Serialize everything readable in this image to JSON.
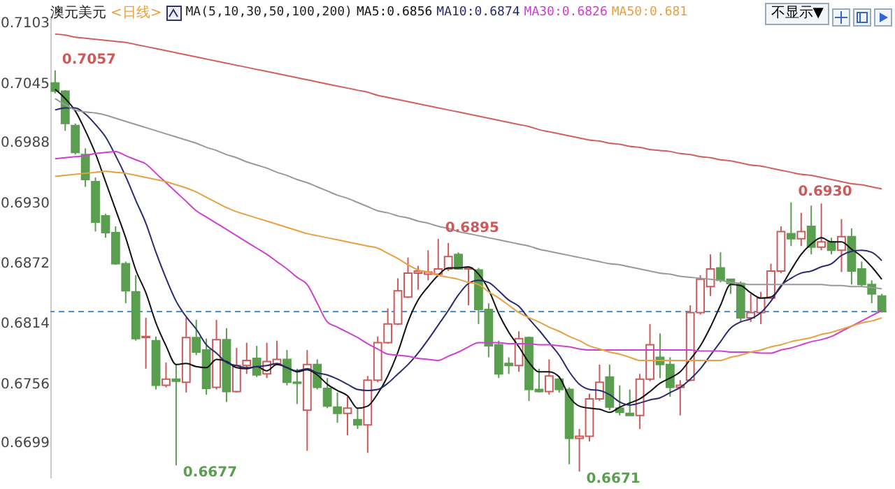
{
  "chart_data": {
    "type": "candlestick",
    "title": "澳元美元",
    "subtitle": "<日线>",
    "categories": [
      null,
      null,
      null,
      null,
      null,
      null,
      null,
      null,
      null,
      null,
      null,
      null,
      null,
      null,
      null,
      null,
      null,
      null,
      null,
      null,
      null,
      null,
      null,
      null,
      null,
      null,
      null,
      null,
      null,
      null,
      null,
      null,
      null,
      null,
      null,
      null,
      null,
      null,
      null,
      null,
      null,
      null,
      null,
      null,
      null,
      null,
      null,
      null,
      null,
      null,
      null,
      null,
      null,
      null,
      null,
      null,
      null,
      null,
      null,
      null,
      null,
      null,
      null,
      null,
      null,
      null,
      null,
      null,
      null,
      null,
      null,
      null,
      null,
      null,
      null,
      null,
      null,
      null,
      null,
      null,
      null,
      null,
      null
    ],
    "ohlc": [
      [
        0.7045,
        0.7057,
        0.7035,
        0.7037
      ],
      [
        0.7037,
        0.7038,
        0.6999,
        0.7006
      ],
      [
        0.7004,
        0.7006,
        0.6976,
        0.6978
      ],
      [
        0.6976,
        0.6982,
        0.6945,
        0.6952
      ],
      [
        0.695,
        0.6954,
        0.6902,
        0.6911
      ],
      [
        0.6917,
        0.6919,
        0.6896,
        0.6901
      ],
      [
        0.6901,
        0.6907,
        0.687,
        0.6871
      ],
      [
        0.6871,
        0.6873,
        0.6833,
        0.6845
      ],
      [
        0.6844,
        0.686,
        0.6797,
        0.6799
      ],
      [
        0.68,
        0.6819,
        0.677,
        0.6801
      ],
      [
        0.6797,
        0.6801,
        0.675,
        0.6754
      ],
      [
        0.6754,
        0.6776,
        0.6752,
        0.676
      ],
      [
        0.676,
        0.6774,
        0.6677,
        0.6758
      ],
      [
        0.6757,
        0.6819,
        0.6747,
        0.68
      ],
      [
        0.68,
        0.6817,
        0.6783,
        0.6786
      ],
      [
        0.6788,
        0.6799,
        0.6745,
        0.6751
      ],
      [
        0.6752,
        0.6817,
        0.675,
        0.6798
      ],
      [
        0.6798,
        0.6809,
        0.6738,
        0.6748
      ],
      [
        0.6748,
        0.679,
        0.6747,
        0.6773
      ],
      [
        0.6773,
        0.6795,
        0.6765,
        0.6778
      ],
      [
        0.678,
        0.6792,
        0.6762,
        0.6764
      ],
      [
        0.6765,
        0.6795,
        0.6761,
        0.6777
      ],
      [
        0.6774,
        0.6797,
        0.6774,
        0.6779
      ],
      [
        0.6779,
        0.6788,
        0.6754,
        0.6757
      ],
      [
        0.6757,
        0.677,
        0.6736,
        0.6756
      ],
      [
        0.673,
        0.6788,
        0.6691,
        0.6774
      ],
      [
        0.6774,
        0.6779,
        0.675,
        0.6752
      ],
      [
        0.6751,
        0.6761,
        0.6732,
        0.6734
      ],
      [
        0.6733,
        0.6747,
        0.6718,
        0.6727
      ],
      [
        0.6727,
        0.6743,
        0.6706,
        0.6732
      ],
      [
        0.6721,
        0.6732,
        0.6712,
        0.6716
      ],
      [
        0.6716,
        0.6763,
        0.6689,
        0.6759
      ],
      [
        0.6759,
        0.6801,
        0.6757,
        0.6795
      ],
      [
        0.6795,
        0.6828,
        0.6794,
        0.6813
      ],
      [
        0.6813,
        0.6857,
        0.6812,
        0.6845
      ],
      [
        0.6839,
        0.6877,
        0.6838,
        0.6862
      ],
      [
        0.6862,
        0.6869,
        0.6846,
        0.6864
      ],
      [
        0.6861,
        0.6884,
        0.6855,
        0.6863
      ],
      [
        0.6861,
        0.6895,
        0.686,
        0.6866
      ],
      [
        0.6866,
        0.6891,
        0.6864,
        0.6878
      ],
      [
        0.688,
        0.6882,
        0.6866,
        0.6866
      ],
      [
        0.6866,
        0.6867,
        0.6831,
        0.6867
      ],
      [
        0.6865,
        0.6867,
        0.6813,
        0.6827
      ],
      [
        0.6827,
        0.6833,
        0.6781,
        0.6792
      ],
      [
        0.6793,
        0.6797,
        0.6761,
        0.6765
      ],
      [
        0.6775,
        0.6781,
        0.6765,
        0.6773
      ],
      [
        0.6773,
        0.6806,
        0.6767,
        0.6799
      ],
      [
        0.68,
        0.6801,
        0.6739,
        0.675
      ],
      [
        0.675,
        0.677,
        0.6747,
        0.6748
      ],
      [
        0.6748,
        0.6779,
        0.6745,
        0.6763
      ],
      [
        0.676,
        0.6763,
        0.6747,
        0.675
      ],
      [
        0.675,
        0.6752,
        0.6678,
        0.6703
      ],
      [
        0.6703,
        0.6712,
        0.6671,
        0.6705
      ],
      [
        0.6705,
        0.6746,
        0.67,
        0.6741
      ],
      [
        0.6741,
        0.6774,
        0.6739,
        0.6757
      ],
      [
        0.6762,
        0.6774,
        0.673,
        0.6733
      ],
      [
        0.6732,
        0.6754,
        0.6725,
        0.6728
      ],
      [
        0.6727,
        0.675,
        0.6725,
        0.6725
      ],
      [
        0.6725,
        0.6765,
        0.6712,
        0.676
      ],
      [
        0.676,
        0.6813,
        0.6758,
        0.6793
      ],
      [
        0.6781,
        0.6804,
        0.6761,
        0.6774
      ],
      [
        0.6774,
        0.6781,
        0.6743,
        0.6752
      ],
      [
        0.6752,
        0.6759,
        0.6725,
        0.6754
      ],
      [
        0.6759,
        0.6831,
        0.6758,
        0.6824
      ],
      [
        0.6824,
        0.686,
        0.6822,
        0.6856
      ],
      [
        0.6849,
        0.688,
        0.684,
        0.6866
      ],
      [
        0.6867,
        0.6882,
        0.6853,
        0.6855
      ],
      [
        0.6856,
        0.6856,
        0.6842,
        0.6852
      ],
      [
        0.6852,
        0.6854,
        0.6815,
        0.6819
      ],
      [
        0.6819,
        0.6842,
        0.6815,
        0.6824
      ],
      [
        0.6824,
        0.6844,
        0.6813,
        0.6838
      ],
      [
        0.6838,
        0.6871,
        0.6837,
        0.6864
      ],
      [
        0.6864,
        0.6907,
        0.6862,
        0.6902
      ],
      [
        0.69,
        0.693,
        0.6888,
        0.6895
      ],
      [
        0.6895,
        0.692,
        0.6888,
        0.6902
      ],
      [
        0.6907,
        0.6927,
        0.688,
        0.6887
      ],
      [
        0.6887,
        0.6929,
        0.6884,
        0.6892
      ],
      [
        0.6892,
        0.6896,
        0.688,
        0.6884
      ],
      [
        0.6884,
        0.6914,
        0.6863,
        0.6897
      ],
      [
        0.6897,
        0.6905,
        0.6851,
        0.6864
      ],
      [
        0.6866,
        0.6873,
        0.6849,
        0.6851
      ],
      [
        0.6851,
        0.6855,
        0.6833,
        0.6842
      ],
      [
        0.684,
        0.6842,
        0.6824,
        0.6825
      ]
    ],
    "colors": [
      "#5a9e4f",
      "#5a9e4f",
      "#5a9e4f",
      "#5a9e4f",
      "#5a9e4f",
      "#5a9e4f",
      "#5a9e4f",
      "#5a9e4f",
      "#5a9e4f",
      "#cc5a5a",
      "#5a9e4f",
      "#cc5a5a",
      "#5a9e4f",
      "#cc5a5a",
      "#5a9e4f",
      "#5a9e4f",
      "#cc5a5a",
      "#5a9e4f",
      "#cc5a5a",
      "#cc5a5a",
      "#5a9e4f",
      "#cc5a5a",
      "#cc5a5a",
      "#5a9e4f",
      "#5a9e4f",
      "#cc5a5a",
      "#5a9e4f",
      "#5a9e4f",
      "#5a9e4f",
      "#cc5a5a",
      "#5a9e4f",
      "#cc5a5a",
      "#cc5a5a",
      "#cc5a5a",
      "#cc5a5a",
      "#cc5a5a",
      "#cc5a5a",
      "#cc5a5a",
      "#cc5a5a",
      "#cc5a5a",
      "#5a9e4f",
      "#cc5a5a",
      "#5a9e4f",
      "#5a9e4f",
      "#5a9e4f",
      "#5a9e4f",
      "#cc5a5a",
      "#5a9e4f",
      "#5a9e4f",
      "#cc5a5a",
      "#5a9e4f",
      "#5a9e4f",
      "#cc5a5a",
      "#cc5a5a",
      "#cc5a5a",
      "#5a9e4f",
      "#5a9e4f",
      "#5a9e4f",
      "#cc5a5a",
      "#cc5a5a",
      "#5a9e4f",
      "#5a9e4f",
      "#cc5a5a",
      "#cc5a5a",
      "#cc5a5a",
      "#cc5a5a",
      "#5a9e4f",
      "#5a9e4f",
      "#5a9e4f",
      "#cc5a5a",
      "#cc5a5a",
      "#cc5a5a",
      "#cc5a5a",
      "#5a9e4f",
      "#cc5a5a",
      "#5a9e4f",
      "#cc5a5a",
      "#5a9e4f",
      "#cc5a5a",
      "#5a9e4f",
      "#5a9e4f",
      "#5a9e4f",
      "#5a9e4f"
    ],
    "series": [
      {
        "type": "line",
        "name": "MA5:0.6856",
        "color": "#111111",
        "values": [
          0.7039,
          0.703,
          0.7018,
          0.6999,
          0.6977,
          0.695,
          0.6923,
          0.6896,
          0.6865,
          0.6843,
          0.6814,
          0.6792,
          0.6774,
          0.6775,
          0.6772,
          0.6771,
          0.6779,
          0.6777,
          0.6771,
          0.677,
          0.6772,
          0.6768,
          0.6774,
          0.6771,
          0.6767,
          0.6769,
          0.6764,
          0.6755,
          0.6749,
          0.6744,
          0.6732,
          0.6734,
          0.6746,
          0.6763,
          0.6786,
          0.6815,
          0.6836,
          0.6849,
          0.686,
          0.6867,
          0.6867,
          0.6868,
          0.6861,
          0.6846,
          0.6823,
          0.6805,
          0.6791,
          0.6776,
          0.6767,
          0.6767,
          0.6762,
          0.6743,
          0.6734,
          0.6732,
          0.6731,
          0.6728,
          0.6733,
          0.6737,
          0.6741,
          0.6748,
          0.6756,
          0.6761,
          0.6767,
          0.6779,
          0.6792,
          0.681,
          0.6831,
          0.6851,
          0.685,
          0.6843,
          0.6838,
          0.6839,
          0.6849,
          0.6865,
          0.688,
          0.689,
          0.6896,
          0.6892,
          0.6892,
          0.6885,
          0.6878,
          0.6868,
          0.6856
        ]
      },
      {
        "type": "line",
        "name": "MA10:0.6874",
        "color": "#2a2a70",
        "values": [
          0.7019,
          0.7021,
          0.7021,
          0.7015,
          0.7005,
          0.6993,
          0.6975,
          0.6955,
          0.6932,
          0.691,
          0.6882,
          0.6857,
          0.6835,
          0.682,
          0.6808,
          0.6793,
          0.6785,
          0.6776,
          0.6773,
          0.6771,
          0.6772,
          0.6773,
          0.6775,
          0.6771,
          0.6768,
          0.677,
          0.6766,
          0.6764,
          0.676,
          0.6755,
          0.675,
          0.6749,
          0.675,
          0.6756,
          0.6765,
          0.6774,
          0.6785,
          0.6798,
          0.6812,
          0.6826,
          0.6841,
          0.6852,
          0.6855,
          0.6853,
          0.6845,
          0.6836,
          0.683,
          0.6818,
          0.6807,
          0.6795,
          0.6783,
          0.6767,
          0.6755,
          0.675,
          0.6749,
          0.6745,
          0.6738,
          0.6735,
          0.6737,
          0.674,
          0.6742,
          0.6747,
          0.6752,
          0.676,
          0.677,
          0.6783,
          0.6796,
          0.6809,
          0.6815,
          0.6818,
          0.6824,
          0.6835,
          0.685,
          0.6857,
          0.6862,
          0.6864,
          0.6868,
          0.6871,
          0.6879,
          0.6883,
          0.6884,
          0.6882,
          0.6874
        ]
      },
      {
        "type": "line",
        "name": "MA30:0.6826",
        "color": "#d040d0",
        "values": [
          0.6972,
          0.6973,
          0.6974,
          0.6975,
          0.6977,
          0.6978,
          0.6979,
          0.6975,
          0.6971,
          0.6967,
          0.6958,
          0.6949,
          0.694,
          0.6931,
          0.6922,
          0.6916,
          0.691,
          0.6904,
          0.6898,
          0.6892,
          0.6886,
          0.688,
          0.6873,
          0.6866,
          0.6858,
          0.6851,
          0.6833,
          0.6815,
          0.681,
          0.6805,
          0.68,
          0.6794,
          0.6789,
          0.6784,
          0.6783,
          0.6782,
          0.678,
          0.6779,
          0.6778,
          0.6782,
          0.6786,
          0.6791,
          0.6795,
          0.6795,
          0.6795,
          0.6794,
          0.6794,
          0.6794,
          0.6793,
          0.6793,
          0.6792,
          0.6791,
          0.6789,
          0.6788,
          0.6788,
          0.6788,
          0.6788,
          0.6788,
          0.6788,
          0.6788,
          0.6788,
          0.6788,
          0.6788,
          0.6788,
          0.6787,
          0.6787,
          0.6787,
          0.6786,
          0.6786,
          0.6786,
          0.6785,
          0.6785,
          0.6788,
          0.679,
          0.6793,
          0.6796,
          0.6798,
          0.6801,
          0.6806,
          0.6811,
          0.6816,
          0.6821,
          0.6826
        ]
      },
      {
        "type": "line",
        "name": "MA50:0.681",
        "color": "#e8a040",
        "values": [
          0.6955,
          0.6956,
          0.6957,
          0.6958,
          0.6959,
          0.696,
          0.6959,
          0.6958,
          0.6956,
          0.6954,
          0.6952,
          0.695,
          0.6947,
          0.6944,
          0.694,
          0.6935,
          0.693,
          0.6925,
          0.6921,
          0.6918,
          0.6915,
          0.6912,
          0.6909,
          0.6906,
          0.6903,
          0.69,
          0.6898,
          0.6896,
          0.6894,
          0.6892,
          0.689,
          0.6888,
          0.6886,
          0.6881,
          0.6876,
          0.687,
          0.6865,
          0.6863,
          0.686,
          0.6858,
          0.6856,
          0.6853,
          0.6851,
          0.6844,
          0.6838,
          0.6831,
          0.6824,
          0.6819,
          0.6815,
          0.681,
          0.6806,
          0.6801,
          0.6797,
          0.6792,
          0.6789,
          0.6786,
          0.6784,
          0.6781,
          0.6778,
          0.6778,
          0.6778,
          0.6778,
          0.6778,
          0.6778,
          0.6778,
          0.6778,
          0.6778,
          0.6781,
          0.6783,
          0.6786,
          0.6788,
          0.6791,
          0.6793,
          0.6796,
          0.6798,
          0.68,
          0.6803,
          0.6805,
          0.6808,
          0.6811,
          0.6814,
          0.6816,
          0.6819
        ]
      },
      {
        "type": "line",
        "color": "#999999",
        "values": [
          0.703,
          0.7024,
          0.7019,
          0.7017,
          0.7016,
          0.7014,
          0.7011,
          0.7008,
          0.7005,
          0.7002,
          0.6999,
          0.6996,
          0.6993,
          0.699,
          0.6987,
          0.6983,
          0.698,
          0.6976,
          0.6973,
          0.6969,
          0.6966,
          0.6963,
          0.6959,
          0.6956,
          0.6952,
          0.6949,
          0.6945,
          0.6941,
          0.6937,
          0.6934,
          0.693,
          0.6926,
          0.6922,
          0.692,
          0.6917,
          0.6915,
          0.6912,
          0.691,
          0.6907,
          0.6905,
          0.6902,
          0.69,
          0.6898,
          0.6896,
          0.6894,
          0.6892,
          0.689,
          0.6888,
          0.6885,
          0.6883,
          0.6881,
          0.6879,
          0.6877,
          0.6875,
          0.6873,
          0.6871,
          0.687,
          0.6868,
          0.6866,
          0.6864,
          0.6862,
          0.6861,
          0.6859,
          0.6858,
          0.6857,
          0.6856,
          0.6855,
          0.6853,
          0.6852,
          0.6851,
          0.6851,
          0.6851,
          0.6851,
          0.6851,
          0.6851,
          0.6851,
          0.6851,
          0.685,
          0.685,
          0.6849,
          0.6849,
          0.6848,
          0.6847
        ]
      },
      {
        "type": "line",
        "color": "#d06060",
        "values": [
          0.7092,
          0.7091,
          0.7089,
          0.7088,
          0.7087,
          0.7086,
          0.7085,
          0.7084,
          0.7082,
          0.708,
          0.7078,
          0.7076,
          0.7074,
          0.7072,
          0.707,
          0.7068,
          0.7066,
          0.7064,
          0.7062,
          0.706,
          0.7058,
          0.7056,
          0.7054,
          0.7052,
          0.705,
          0.7048,
          0.7046,
          0.7044,
          0.7042,
          0.704,
          0.7038,
          0.7036,
          0.7033,
          0.7031,
          0.7029,
          0.7027,
          0.7025,
          0.7023,
          0.7021,
          0.7019,
          0.7017,
          0.7015,
          0.7013,
          0.7011,
          0.7009,
          0.7007,
          0.7005,
          0.7003,
          0.7,
          0.6998,
          0.6996,
          0.6994,
          0.6992,
          0.699,
          0.6989,
          0.6987,
          0.6986,
          0.6984,
          0.6983,
          0.6981,
          0.698,
          0.6979,
          0.6977,
          0.6976,
          0.6974,
          0.6973,
          0.6971,
          0.697,
          0.6968,
          0.6966,
          0.6965,
          0.6963,
          0.6961,
          0.6959,
          0.6957,
          0.6956,
          0.6954,
          0.6952,
          0.695,
          0.6948,
          0.6947,
          0.6945,
          0.6943
        ]
      }
    ],
    "ylim": [
      0.6665,
      0.711
    ],
    "yticks": [
      0.6699,
      0.6756,
      0.6814,
      0.6872,
      {
        "value": 0.693,
        "label": "0.6930"
      },
      0.6988,
      0.7045,
      0.7103
    ],
    "ref_lines": [
      {
        "axis": "y",
        "value": 0.6825,
        "color": "#4a90d9",
        "line_style": "dashed"
      }
    ],
    "annotations": [
      "MA(5,10,30,50,100,200)",
      "不显示▼",
      "0.7057",
      "0.6677",
      "0.6895",
      "0.6671",
      "0.6930"
    ],
    "legend": "top"
  }
}
